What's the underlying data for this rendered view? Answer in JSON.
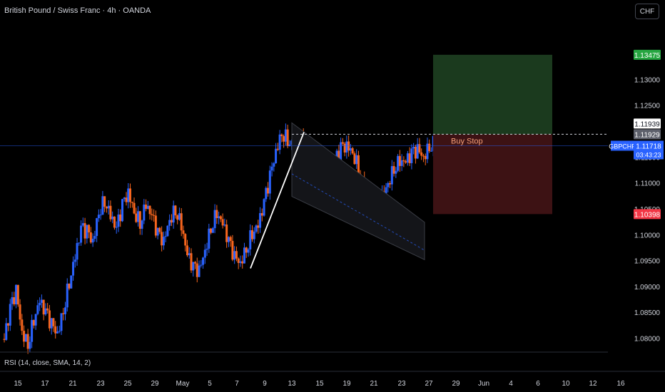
{
  "header": {
    "title": "British Pound / Swiss Franc · 4h · OANDA",
    "currency_button": "CHF"
  },
  "indicator": {
    "label": "RSI (14, close, SMA, 14, 2)"
  },
  "colors": {
    "background": "#000000",
    "bull": "#2962ff",
    "bear": "#f7651d",
    "target_zone": "#1b3a1e",
    "stop_zone": "#3d1214",
    "channel_fill": "#141519",
    "current_price_tag": "#2962ff",
    "target_tag": "#26a641",
    "stop_tag": "#f23645"
  },
  "chart_data": {
    "type": "candlestick",
    "symbol": "GBPCHF",
    "timeframe": "4h",
    "ylim": [
      1.0776,
      1.1412
    ],
    "x_ticks": [
      "15",
      "17",
      "21",
      "23",
      "25",
      "29",
      "May",
      "5",
      "7",
      "9",
      "13",
      "15",
      "19",
      "21",
      "23",
      "27",
      "29",
      "Jun",
      "4",
      "6",
      "10",
      "12",
      "16"
    ],
    "y_ticks": [
      "1.13000",
      "1.12500",
      "1.11500",
      "1.11000",
      "1.10500",
      "1.10000",
      "1.09500",
      "1.09000",
      "1.08500",
      "1.08000"
    ],
    "trend": [
      [
        1.0798,
        1.0855,
        1.089,
        1.0812,
        1.079,
        1.0838,
        1.0872,
        1.0848,
        1.0825,
        1.0808,
        1.0855,
        1.091,
        1.0958,
        1.101,
        1.1005,
        1.0985,
        1.1045,
        1.1068,
        1.1038,
        1.101,
        1.1055,
        1.108,
        1.1045,
        1.1025,
        1.106,
        1.1035,
        1.1,
        1.0985,
        1.103,
        1.105,
        1.102,
        1.096,
        1.0935,
        1.0928,
        1.097,
        1.1015,
        1.1045,
        1.102,
        1.0985,
        1.0955,
        1.0945,
        1.0975,
        1.1005,
        1.1018,
        1.106,
        1.111,
        1.116,
        1.1198,
        1.1185,
        1.117,
        1.1185,
        1.117,
        1.115,
        1.1125,
        1.1115,
        1.1128,
        1.114,
        1.1165,
        1.117,
        1.116,
        1.113,
        1.1085,
        1.1058,
        1.105,
        1.1072,
        1.11,
        1.113,
        1.1145,
        1.114,
        1.1155,
        1.1162,
        1.115,
        1.1172,
        1.118
      ]
    ],
    "last_price": 1.11718,
    "countdown": "03:43:23",
    "price_labels": {
      "target": "1.13475",
      "entry": "1.11939",
      "entry_alt": "1.11929",
      "current": "1.11718",
      "stop": "1.10398"
    },
    "annotations": {
      "order": "Buy Stop"
    },
    "position": {
      "target": 1.13475,
      "entry": 1.11939,
      "stop": 1.10398
    },
    "channel": {
      "upper": [
        [
          0.0,
          1.1205
        ],
        [
          1.0,
          1.1035
        ]
      ],
      "lower": [
        [
          0.0,
          1.1085
        ],
        [
          1.0,
          1.1015
        ]
      ]
    }
  }
}
